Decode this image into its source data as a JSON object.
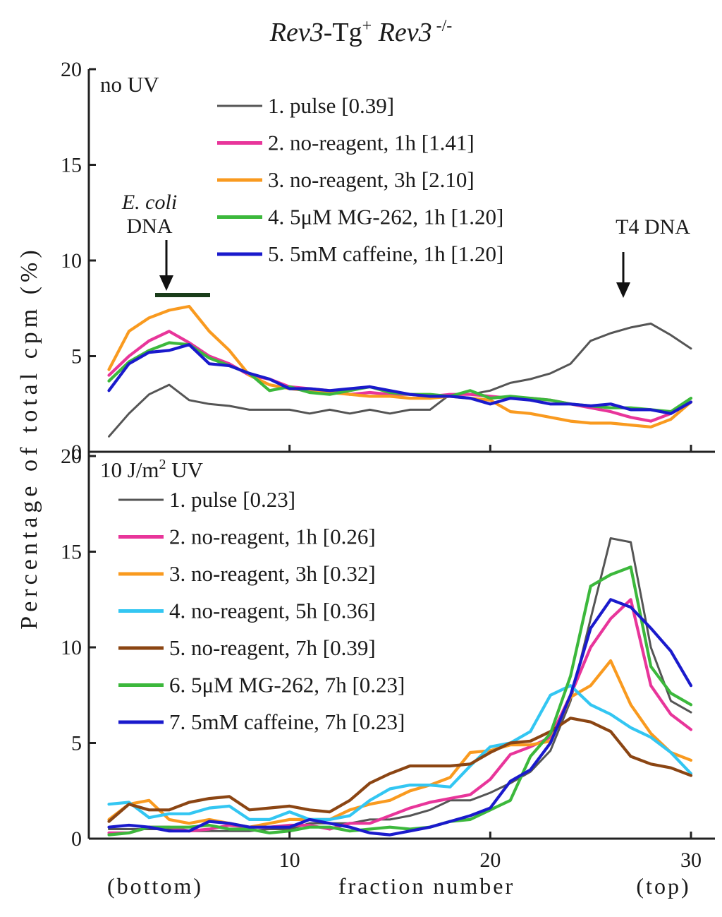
{
  "figure_title": {
    "part1": "Rev3",
    "part2": "-Tg",
    "sup1": "+",
    "part3": " Rev3",
    "sup2": " -/-"
  },
  "y_axis_label": "Percentage of total cpm (%)",
  "x_axis": {
    "label": "fraction number",
    "left_note": "(bottom)",
    "right_note": "(top)",
    "ticks": [
      "10",
      "20",
      "30"
    ]
  },
  "colors": {
    "black": "#555555",
    "magenta": "#e8359a",
    "orange": "#f99a1f",
    "green": "#3cb83c",
    "blue": "#1a1acc",
    "cyan": "#33c6f2",
    "brown": "#8b4513"
  },
  "annotations": {
    "ecoli_name": "E. coli",
    "ecoli_dna": "DNA",
    "t4_dna": "T4 DNA"
  },
  "chart_data": [
    {
      "type": "line",
      "panel_label": "no UV",
      "xlim": [
        0,
        30
      ],
      "ylim": [
        0,
        20
      ],
      "y_ticks": [
        "0",
        "5",
        "10",
        "15",
        "20"
      ],
      "x": [
        1,
        2,
        3,
        4,
        5,
        6,
        7,
        8,
        9,
        10,
        11,
        12,
        13,
        14,
        15,
        16,
        17,
        18,
        19,
        20,
        21,
        22,
        23,
        24,
        25,
        26,
        27,
        28,
        29,
        30
      ],
      "series": [
        {
          "name": "1. pulse",
          "value_label": "[0.39]",
          "color": "black",
          "values": [
            0.8,
            2.0,
            3.0,
            3.5,
            2.7,
            2.5,
            2.4,
            2.2,
            2.2,
            2.2,
            2.0,
            2.2,
            2.0,
            2.2,
            2.0,
            2.2,
            2.2,
            3.0,
            3.0,
            3.2,
            3.6,
            3.8,
            4.1,
            4.6,
            5.8,
            6.2,
            6.5,
            6.7,
            6.1,
            5.4
          ]
        },
        {
          "name": "2. no-reagent, 1h",
          "value_label": "[1.41]",
          "color": "magenta",
          "values": [
            4.0,
            5.0,
            5.8,
            6.3,
            5.7,
            5.0,
            4.6,
            4.0,
            3.8,
            3.4,
            3.3,
            3.2,
            3.0,
            3.1,
            3.0,
            3.0,
            2.9,
            3.0,
            3.0,
            2.9,
            2.8,
            2.8,
            2.7,
            2.5,
            2.3,
            2.1,
            1.8,
            1.6,
            2.0,
            2.6
          ]
        },
        {
          "name": "3. no-reagent, 3h",
          "value_label": "[2.10]",
          "color": "orange",
          "values": [
            4.3,
            6.3,
            7.0,
            7.4,
            7.6,
            6.3,
            5.3,
            4.0,
            3.5,
            3.3,
            3.2,
            3.1,
            3.0,
            2.9,
            2.9,
            2.8,
            2.8,
            2.9,
            2.8,
            2.7,
            2.1,
            2.0,
            1.8,
            1.6,
            1.5,
            1.5,
            1.4,
            1.3,
            1.7,
            2.6
          ]
        },
        {
          "name": "4. 5μM MG-262, 1h",
          "value_label": "[1.20]",
          "color": "green",
          "values": [
            3.7,
            4.7,
            5.3,
            5.7,
            5.6,
            4.9,
            4.5,
            4.1,
            3.2,
            3.4,
            3.1,
            3.0,
            3.2,
            3.4,
            3.1,
            3.0,
            3.0,
            2.9,
            3.2,
            2.8,
            2.9,
            2.8,
            2.7,
            2.5,
            2.4,
            2.3,
            2.3,
            2.2,
            2.1,
            2.8
          ]
        },
        {
          "name": "5. 5mM caffeine, 1h",
          "value_label": "[1.20]",
          "color": "blue",
          "values": [
            3.2,
            4.6,
            5.2,
            5.3,
            5.6,
            4.6,
            4.5,
            4.1,
            3.8,
            3.3,
            3.3,
            3.2,
            3.3,
            3.4,
            3.2,
            3.0,
            2.9,
            2.9,
            2.8,
            2.5,
            2.8,
            2.7,
            2.5,
            2.5,
            2.4,
            2.5,
            2.2,
            2.2,
            2.0,
            2.6
          ]
        }
      ]
    },
    {
      "type": "line",
      "panel_label": "10 J/m",
      "panel_label_sup": "2",
      "panel_label_tail": " UV",
      "xlim": [
        0,
        30
      ],
      "ylim": [
        0,
        20
      ],
      "y_ticks": [
        "0",
        "5",
        "10",
        "15",
        "20"
      ],
      "x": [
        1,
        2,
        3,
        4,
        5,
        6,
        7,
        8,
        9,
        10,
        11,
        12,
        13,
        14,
        15,
        16,
        17,
        18,
        19,
        20,
        21,
        22,
        23,
        24,
        25,
        26,
        27,
        28,
        29,
        30
      ],
      "series": [
        {
          "name": "1. pulse",
          "value_label": "[0.23]",
          "color": "black",
          "values": [
            0.5,
            0.5,
            0.5,
            0.5,
            0.4,
            0.4,
            0.4,
            0.4,
            0.5,
            0.5,
            0.8,
            0.8,
            0.8,
            1.0,
            1.0,
            1.2,
            1.5,
            2.0,
            2.0,
            2.4,
            2.9,
            3.5,
            4.6,
            7.2,
            11.5,
            15.7,
            15.5,
            10.0,
            7.2,
            6.6
          ]
        },
        {
          "name": "2. no-reagent, 1h",
          "value_label": "[0.26]",
          "color": "magenta",
          "values": [
            0.3,
            0.3,
            0.6,
            0.6,
            0.4,
            0.5,
            0.7,
            0.6,
            0.6,
            0.7,
            0.7,
            0.5,
            0.8,
            0.8,
            1.2,
            1.6,
            1.9,
            2.1,
            2.3,
            3.1,
            4.4,
            4.8,
            5.3,
            7.5,
            10.0,
            11.5,
            12.5,
            8.0,
            6.5,
            5.7
          ]
        },
        {
          "name": "3. no-reagent, 3h",
          "value_label": "[0.32]",
          "color": "orange",
          "values": [
            1.0,
            1.8,
            2.0,
            1.0,
            0.8,
            1.0,
            0.8,
            0.6,
            0.8,
            1.0,
            1.0,
            1.0,
            1.5,
            1.8,
            2.0,
            2.5,
            2.8,
            3.2,
            4.5,
            4.6,
            4.9,
            4.9,
            5.1,
            7.4,
            8.0,
            9.3,
            7.0,
            5.5,
            4.5,
            4.1
          ]
        },
        {
          "name": "4. no-reagent, 5h",
          "value_label": "[0.36]",
          "color": "cyan",
          "values": [
            1.8,
            1.9,
            1.1,
            1.3,
            1.3,
            1.6,
            1.7,
            1.0,
            1.0,
            1.4,
            1.0,
            1.0,
            1.2,
            2.0,
            2.6,
            2.8,
            2.8,
            2.7,
            3.8,
            4.8,
            5.0,
            5.6,
            7.5,
            8.0,
            7.0,
            6.5,
            5.8,
            5.3,
            4.5,
            3.4
          ]
        },
        {
          "name": "5. no-reagent, 7h",
          "value_label": "[0.39]",
          "color": "brown",
          "values": [
            0.9,
            1.8,
            1.5,
            1.5,
            1.9,
            2.1,
            2.2,
            1.5,
            1.6,
            1.7,
            1.5,
            1.4,
            2.0,
            2.9,
            3.4,
            3.8,
            3.8,
            3.8,
            3.9,
            4.5,
            5.0,
            5.1,
            5.6,
            6.3,
            6.1,
            5.6,
            4.3,
            3.9,
            3.7,
            3.3
          ]
        },
        {
          "name": "6. 5μM MG-262, 7h",
          "value_label": "[0.23]",
          "color": "green",
          "values": [
            0.2,
            0.3,
            0.6,
            0.6,
            0.6,
            0.7,
            0.5,
            0.5,
            0.3,
            0.4,
            0.6,
            0.6,
            0.4,
            0.5,
            0.6,
            0.5,
            0.6,
            0.9,
            1.0,
            1.5,
            2.0,
            4.3,
            5.5,
            8.5,
            13.2,
            13.8,
            14.2,
            9.0,
            7.6,
            7.0
          ]
        },
        {
          "name": "7. 5mM caffeine, 7h",
          "value_label": "[0.23]",
          "color": "blue",
          "values": [
            0.6,
            0.7,
            0.6,
            0.4,
            0.4,
            0.9,
            0.8,
            0.6,
            0.6,
            0.6,
            1.0,
            0.8,
            0.6,
            0.3,
            0.2,
            0.4,
            0.6,
            0.9,
            1.2,
            1.6,
            3.0,
            3.6,
            5.0,
            7.5,
            11.0,
            12.5,
            12.1,
            11.0,
            9.8,
            8.0
          ]
        }
      ]
    }
  ]
}
